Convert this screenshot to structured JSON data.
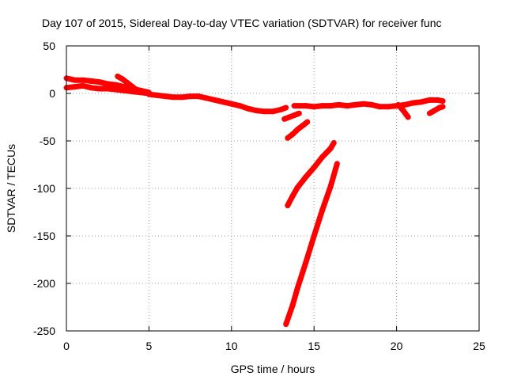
{
  "chart_data": {
    "type": "line",
    "title": "Day 107 of 2015, Sidereal Day-to-day VTEC variation (SDTVAR) for receiver func",
    "xlabel": "GPS time / hours",
    "ylabel": "SDTVAR / TECUs",
    "xlim": [
      0,
      25
    ],
    "ylim": [
      -250,
      50
    ],
    "xticks": [
      0,
      5,
      10,
      15,
      20,
      25
    ],
    "yticks": [
      50,
      0,
      -50,
      -100,
      -150,
      -200,
      -250
    ],
    "grid": true,
    "legend": "none",
    "series_color": "#ff0000",
    "series": [
      {
        "segments": [
          {
            "x": [
              0.0,
              0.5,
              1.0,
              1.5,
              2.0,
              2.5,
              3.0,
              3.5,
              4.0,
              4.5,
              5.0
            ],
            "y": [
              16,
              14,
              14,
              13,
              12,
              10,
              9,
              7,
              5,
              3,
              1
            ]
          },
          {
            "x": [
              0.0,
              0.5,
              1.0,
              1.5,
              2.0,
              2.5,
              3.0,
              3.5,
              4.0,
              4.5,
              5.0
            ],
            "y": [
              6,
              7,
              8,
              6,
              5,
              5,
              4,
              3,
              2,
              1,
              0
            ]
          },
          {
            "x": [
              3.1,
              3.4,
              3.7,
              4.0,
              4.3
            ],
            "y": [
              18,
              15,
              11,
              7,
              3
            ]
          },
          {
            "x": [
              5.0,
              5.5,
              6.0,
              6.5,
              7.0,
              7.5,
              8.0,
              8.5,
              9.0,
              9.5,
              10.0,
              10.5,
              11.0,
              11.5,
              12.0,
              12.5,
              13.0,
              13.3
            ],
            "y": [
              -1,
              -2,
              -3,
              -4,
              -4,
              -3,
              -3,
              -5,
              -7,
              -9,
              -11,
              -13,
              -16,
              -18,
              -19,
              -19,
              -17,
              -15
            ]
          },
          {
            "x": [
              13.2,
              13.5,
              13.8,
              14.1
            ],
            "y": [
              -27,
              -25,
              -23,
              -21
            ]
          },
          {
            "x": [
              13.4,
              13.7,
              14.0,
              14.3,
              14.6
            ],
            "y": [
              -47,
              -43,
              -38,
              -34,
              -30
            ]
          },
          {
            "x": [
              13.8,
              14.5,
              15.0,
              15.5,
              16.0,
              16.5,
              17.0,
              17.5,
              18.0,
              18.5,
              19.0,
              19.5,
              20.0,
              20.5,
              21.0,
              21.5,
              22.0,
              22.5,
              22.8
            ],
            "y": [
              -13,
              -13,
              -14,
              -13,
              -13,
              -12,
              -13,
              -12,
              -11,
              -12,
              -14,
              -14,
              -13,
              -12,
              -10,
              -9,
              -7,
              -7,
              -8
            ]
          },
          {
            "x": [
              20.1,
              20.4,
              20.7
            ],
            "y": [
              -12,
              -18,
              -25
            ]
          },
          {
            "x": [
              22.0,
              22.3,
              22.6,
              22.8
            ],
            "y": [
              -21,
              -18,
              -15,
              -14
            ]
          },
          {
            "x": [
              13.4,
              13.7,
              14.0,
              14.5,
              15.0,
              15.5,
              16.0,
              16.2
            ],
            "y": [
              -118,
              -108,
              -99,
              -88,
              -78,
              -67,
              -58,
              -52
            ]
          },
          {
            "x": [
              13.3,
              13.7,
              14.0,
              14.5,
              15.0,
              15.5,
              16.0,
              16.4
            ],
            "y": [
              -243,
              -223,
              -205,
              -178,
              -150,
              -123,
              -98,
              -74
            ]
          }
        ]
      }
    ]
  }
}
